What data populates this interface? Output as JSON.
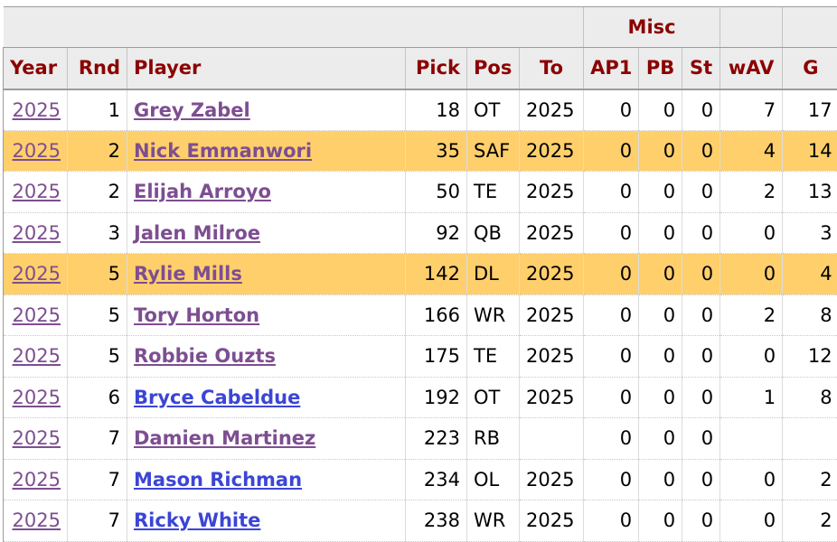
{
  "header": {
    "group_label": "Misc",
    "columns": [
      "Year",
      "Rnd",
      "Player",
      "Pick",
      "Pos",
      "To",
      "AP1",
      "PB",
      "St",
      "wAV",
      "G"
    ]
  },
  "colors": {
    "header_text": "#8b0000",
    "visited_link": "#7d4e91",
    "unvisited_link": "#3b45d6",
    "highlight_row": "#ffcf6b"
  },
  "rows": [
    {
      "year": "2025",
      "rnd": "1",
      "player": "Grey Zabel",
      "pick": "18",
      "pos": "OT",
      "to": "2025",
      "ap1": "0",
      "pb": "0",
      "st": "0",
      "wav": "7",
      "g": "17",
      "highlighted": false,
      "link_state": "visited"
    },
    {
      "year": "2025",
      "rnd": "2",
      "player": "Nick Emmanwori",
      "pick": "35",
      "pos": "SAF",
      "to": "2025",
      "ap1": "0",
      "pb": "0",
      "st": "0",
      "wav": "4",
      "g": "14",
      "highlighted": true,
      "link_state": "visited"
    },
    {
      "year": "2025",
      "rnd": "2",
      "player": "Elijah Arroyo",
      "pick": "50",
      "pos": "TE",
      "to": "2025",
      "ap1": "0",
      "pb": "0",
      "st": "0",
      "wav": "2",
      "g": "13",
      "highlighted": false,
      "link_state": "visited"
    },
    {
      "year": "2025",
      "rnd": "3",
      "player": "Jalen Milroe",
      "pick": "92",
      "pos": "QB",
      "to": "2025",
      "ap1": "0",
      "pb": "0",
      "st": "0",
      "wav": "0",
      "g": "3",
      "highlighted": false,
      "link_state": "visited"
    },
    {
      "year": "2025",
      "rnd": "5",
      "player": "Rylie Mills",
      "pick": "142",
      "pos": "DL",
      "to": "2025",
      "ap1": "0",
      "pb": "0",
      "st": "0",
      "wav": "0",
      "g": "4",
      "highlighted": true,
      "link_state": "visited"
    },
    {
      "year": "2025",
      "rnd": "5",
      "player": "Tory Horton",
      "pick": "166",
      "pos": "WR",
      "to": "2025",
      "ap1": "0",
      "pb": "0",
      "st": "0",
      "wav": "2",
      "g": "8",
      "highlighted": false,
      "link_state": "visited"
    },
    {
      "year": "2025",
      "rnd": "5",
      "player": "Robbie Ouzts",
      "pick": "175",
      "pos": "TE",
      "to": "2025",
      "ap1": "0",
      "pb": "0",
      "st": "0",
      "wav": "0",
      "g": "12",
      "highlighted": false,
      "link_state": "visited"
    },
    {
      "year": "2025",
      "rnd": "6",
      "player": "Bryce Cabeldue",
      "pick": "192",
      "pos": "OT",
      "to": "2025",
      "ap1": "0",
      "pb": "0",
      "st": "0",
      "wav": "1",
      "g": "8",
      "highlighted": false,
      "link_state": "unvisited"
    },
    {
      "year": "2025",
      "rnd": "7",
      "player": "Damien Martinez",
      "pick": "223",
      "pos": "RB",
      "to": "",
      "ap1": "0",
      "pb": "0",
      "st": "0",
      "wav": "",
      "g": "",
      "highlighted": false,
      "link_state": "visited"
    },
    {
      "year": "2025",
      "rnd": "7",
      "player": "Mason Richman",
      "pick": "234",
      "pos": "OL",
      "to": "2025",
      "ap1": "0",
      "pb": "0",
      "st": "0",
      "wav": "0",
      "g": "2",
      "highlighted": false,
      "link_state": "unvisited"
    },
    {
      "year": "2025",
      "rnd": "7",
      "player": "Ricky White",
      "pick": "238",
      "pos": "WR",
      "to": "2025",
      "ap1": "0",
      "pb": "0",
      "st": "0",
      "wav": "0",
      "g": "2",
      "highlighted": false,
      "link_state": "unvisited"
    }
  ]
}
